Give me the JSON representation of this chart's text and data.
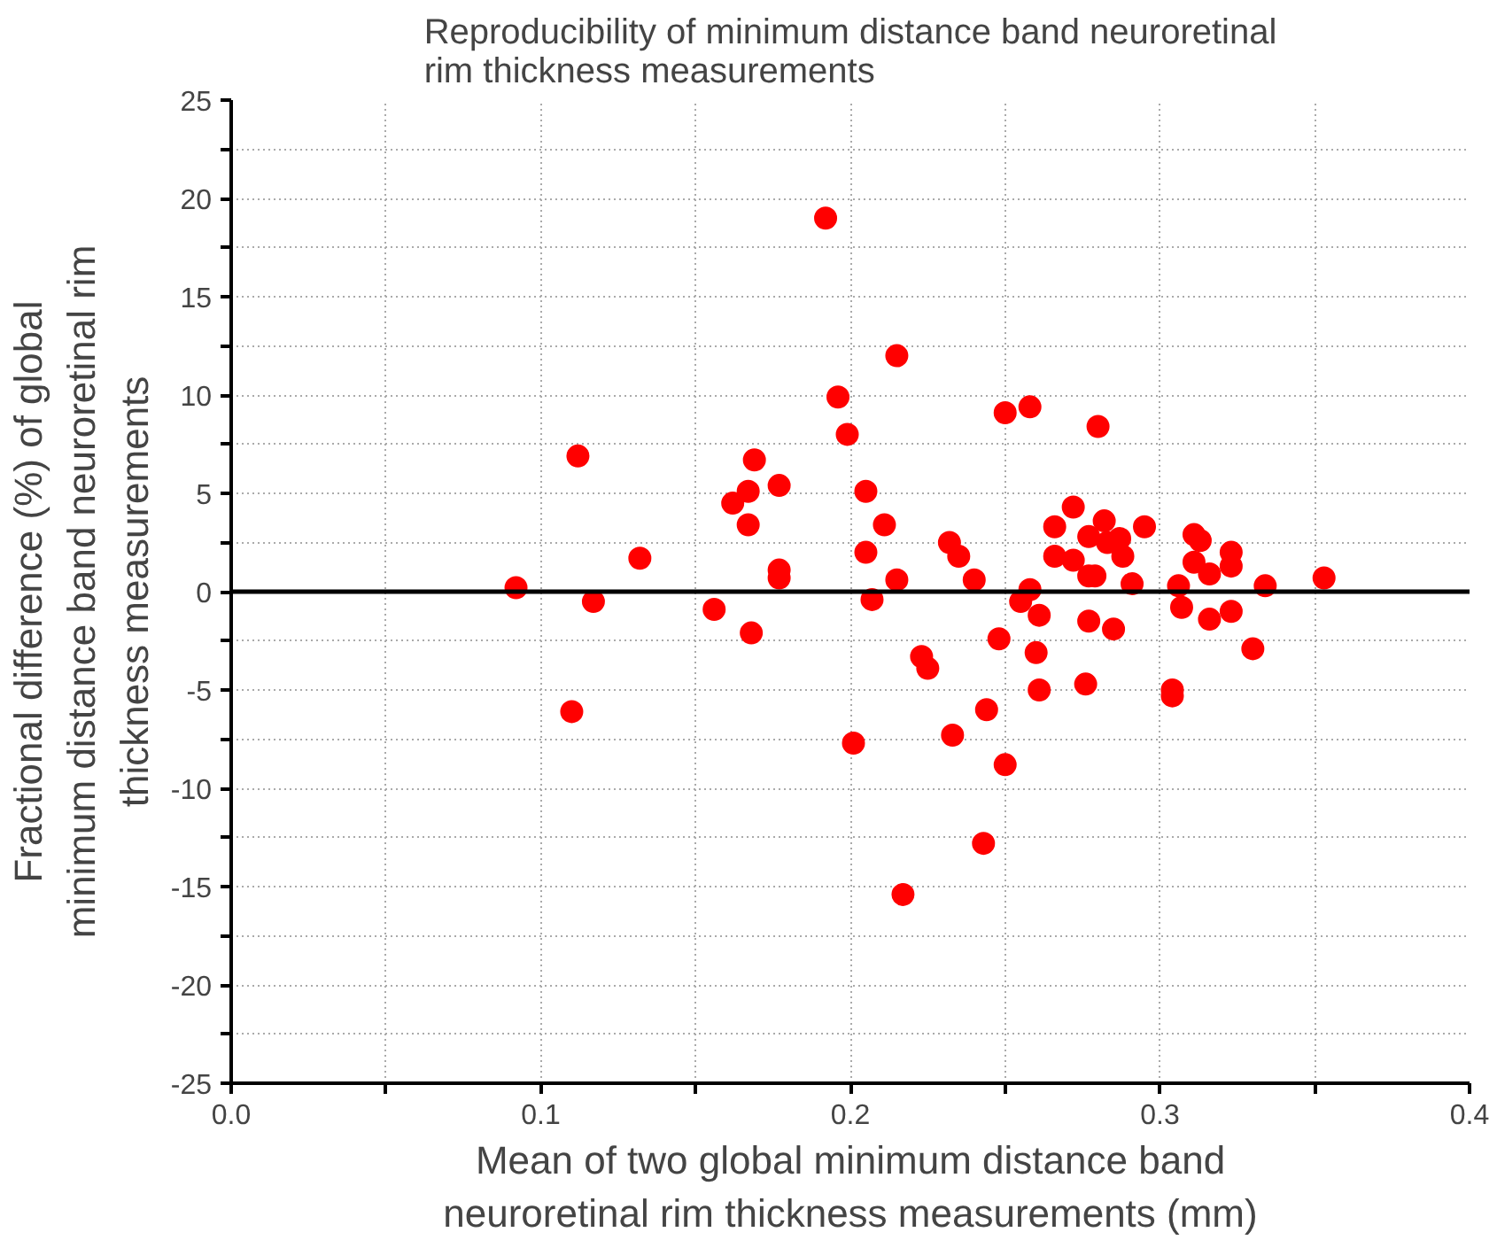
{
  "chart_data": {
    "type": "scatter",
    "title": "Reproducibility of minimum distance band neuroretinal rim thickness measurements",
    "xlabel": "Mean of two global minimum distance band neuroretinal rim thickness measurements (mm)",
    "ylabel": "Fractional difference (%) of global minimum distance band neuroretinal rim thickness measurements",
    "x": [
      0.092,
      0.112,
      0.117,
      0.11,
      0.132,
      0.156,
      0.162,
      0.167,
      0.167,
      0.169,
      0.168,
      0.177,
      0.177,
      0.177,
      0.192,
      0.215,
      0.196,
      0.199,
      0.25,
      0.258,
      0.205,
      0.211,
      0.205,
      0.215,
      0.207,
      0.232,
      0.235,
      0.24,
      0.223,
      0.225,
      0.244,
      0.248,
      0.255,
      0.258,
      0.201,
      0.233,
      0.25,
      0.243,
      0.217,
      0.261,
      0.26,
      0.28,
      0.272,
      0.266,
      0.282,
      0.295,
      0.277,
      0.283,
      0.287,
      0.288,
      0.266,
      0.272,
      0.277,
      0.279,
      0.291,
      0.261,
      0.277,
      0.285,
      0.276,
      0.304,
      0.304,
      0.311,
      0.313,
      0.311,
      0.316,
      0.323,
      0.323,
      0.306,
      0.307,
      0.316,
      0.323,
      0.334,
      0.33,
      0.353
    ],
    "series": [
      {
        "color": "#ff0000",
        "values": [
          0.2,
          6.9,
          -0.5,
          -6.1,
          1.7,
          -0.9,
          4.5,
          5.1,
          3.4,
          6.7,
          -2.1,
          5.4,
          1.1,
          0.7,
          19.0,
          12.0,
          9.9,
          8.0,
          9.1,
          9.4,
          5.1,
          3.4,
          2.0,
          0.6,
          -0.4,
          2.5,
          1.8,
          0.6,
          -3.3,
          -3.9,
          -6.0,
          -2.4,
          -0.5,
          0.1,
          -7.7,
          -7.3,
          -8.8,
          -12.8,
          -15.4,
          -5.0,
          -3.1,
          8.4,
          4.3,
          3.3,
          3.6,
          3.3,
          2.8,
          2.5,
          2.7,
          1.8,
          1.8,
          1.6,
          0.8,
          0.8,
          0.4,
          -1.2,
          -1.5,
          -1.9,
          -4.7,
          -5.0,
          -5.3,
          2.9,
          2.6,
          1.5,
          0.9,
          2.0,
          1.3,
          0.3,
          -0.8,
          -1.4,
          -1.0,
          0.3,
          -2.9,
          0.7
        ]
      }
    ],
    "xlim": [
      0,
      0.4
    ],
    "ylim": [
      -25,
      25
    ],
    "xticks": [
      {
        "value": 0,
        "label": "0.0"
      },
      {
        "value": 0.05,
        "label": null
      },
      {
        "value": 0.1,
        "label": "0.1"
      },
      {
        "value": 0.15,
        "label": null
      },
      {
        "value": 0.2,
        "label": "0.2"
      },
      {
        "value": 0.25,
        "label": null
      },
      {
        "value": 0.3,
        "label": "0.3"
      },
      {
        "value": 0.35,
        "label": null
      },
      {
        "value": 0.4,
        "label": "0.4"
      }
    ],
    "yticks": [
      -25,
      {
        "value": -22.5,
        "label": null
      },
      -20,
      {
        "value": -17.5,
        "label": null
      },
      -15,
      {
        "value": -12.5,
        "label": null
      },
      -10,
      {
        "value": -7.5,
        "label": null
      },
      -5,
      {
        "value": -2.5,
        "label": null
      },
      0,
      {
        "value": 2.5,
        "label": null
      },
      5,
      {
        "value": 7.5,
        "label": null
      },
      10,
      {
        "value": 12.5,
        "label": null
      },
      15,
      {
        "value": 17.5,
        "label": null
      },
      20,
      {
        "value": 22.5,
        "label": null
      },
      25
    ],
    "ref_lines": [
      {
        "axis": "y",
        "value": 0,
        "color": "#000000",
        "line_style": "solid"
      }
    ],
    "grid": true,
    "marker": "circle"
  }
}
